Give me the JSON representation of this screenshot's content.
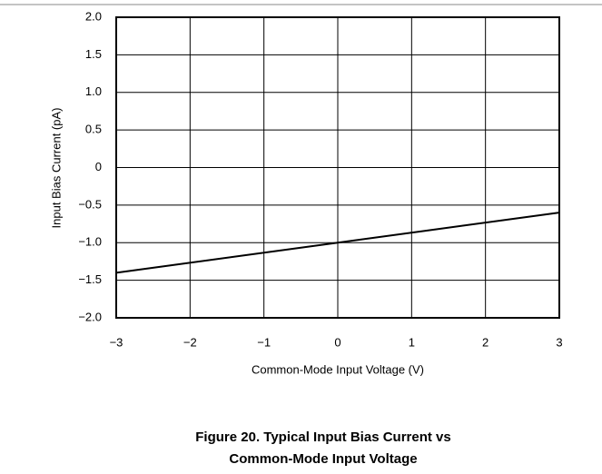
{
  "chart_data": {
    "type": "line",
    "caption": [
      "Figure 20. Typical Input Bias Current vs",
      "Common-Mode Input Voltage"
    ],
    "xlabel": "Common-Mode Input Voltage (V)",
    "ylabel": "Input Bias Current (pA)",
    "x": [
      -3,
      0,
      3
    ],
    "values": [
      -1.4,
      -1.0,
      -0.6
    ],
    "color": "#000000",
    "xlim": [
      -3,
      3
    ],
    "ylim": [
      -2,
      2
    ],
    "xticks": [
      {
        "value": -3,
        "label": "−3"
      },
      {
        "value": -2,
        "label": "−2"
      },
      {
        "value": -1,
        "label": "−1"
      },
      0,
      1,
      2,
      3
    ],
    "yticks": [
      {
        "value": 2,
        "label": "2.0"
      },
      {
        "value": 1.5,
        "label": "1.5"
      },
      {
        "value": 1,
        "label": "1.0"
      },
      {
        "value": 0.5,
        "label": "0.5"
      },
      0,
      {
        "value": -0.5,
        "label": "−0.5"
      },
      {
        "value": -1,
        "label": "−1.0"
      },
      {
        "value": -1.5,
        "label": "−1.5"
      },
      {
        "value": -2,
        "label": "−2.0"
      }
    ],
    "grid": true
  }
}
